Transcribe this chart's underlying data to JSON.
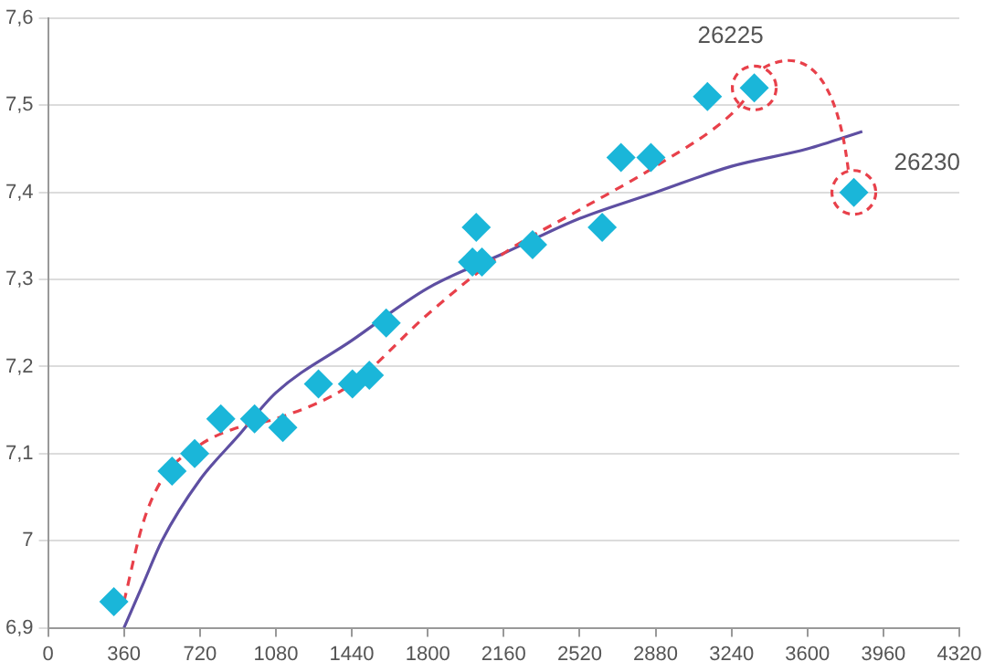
{
  "chart_data": {
    "type": "scatter",
    "xlim": [
      0,
      4320
    ],
    "xticks": [
      0,
      360,
      720,
      1080,
      1440,
      1800,
      2160,
      2520,
      2880,
      3240,
      3600,
      3960,
      4320
    ],
    "ylim": [
      6.9,
      7.6
    ],
    "yticks": [
      {
        "value": 6.9,
        "label": "6,9"
      },
      7,
      {
        "value": 7.1,
        "label": "7,1"
      },
      {
        "value": 7.2,
        "label": "7,2"
      },
      {
        "value": 7.3,
        "label": "7,3"
      },
      {
        "value": 7.4,
        "label": "7,4"
      },
      {
        "value": 7.5,
        "label": "7,5"
      },
      {
        "value": 7.6,
        "label": "7,6"
      }
    ],
    "grid": "y",
    "legend": false,
    "marker": "diamond",
    "series": [
      {
        "color": "#1ab6d9",
        "x": [
          312,
          588,
          695,
          819,
          979,
          1113,
          1282,
          1443,
          1523,
          1603,
          2012,
          2030,
          2057,
          2297,
          2627,
          2716,
          2858,
          3126,
          3348,
          3820
        ],
        "values": [
          6.93,
          7.08,
          7.1,
          7.14,
          7.14,
          7.13,
          7.18,
          7.18,
          7.19,
          7.25,
          7.32,
          7.36,
          7.32,
          7.34,
          7.36,
          7.44,
          7.44,
          7.51,
          7.52,
          7.4
        ]
      },
      {
        "type": "line",
        "color": "#e8404a",
        "line_style": "dashed",
        "marker": "none",
        "x": [
          360,
          450,
          540,
          720,
          900,
          1080,
          1440,
          1800,
          2160,
          2520,
          2880,
          3240,
          3348
        ],
        "values": [
          6.93,
          7.02,
          7.07,
          7.11,
          7.13,
          7.14,
          7.18,
          7.26,
          7.33,
          7.38,
          7.43,
          7.49,
          7.52
        ]
      },
      {
        "type": "line",
        "color": "#5e4fa2",
        "line_style": "solid",
        "marker": "none",
        "x": [
          360,
          450,
          540,
          720,
          900,
          1080,
          1440,
          1800,
          2160,
          2520,
          2880,
          3240,
          3600,
          3860
        ],
        "values": [
          6.9,
          6.95,
          7.0,
          7.07,
          7.12,
          7.17,
          7.23,
          7.29,
          7.33,
          7.37,
          7.4,
          7.43,
          7.45,
          7.47
        ]
      }
    ],
    "annotations": [
      {
        "text": "26225",
        "x": 3348,
        "y": 7.52
      },
      {
        "text": "26230",
        "x": 3820,
        "y": 7.4
      }
    ]
  }
}
